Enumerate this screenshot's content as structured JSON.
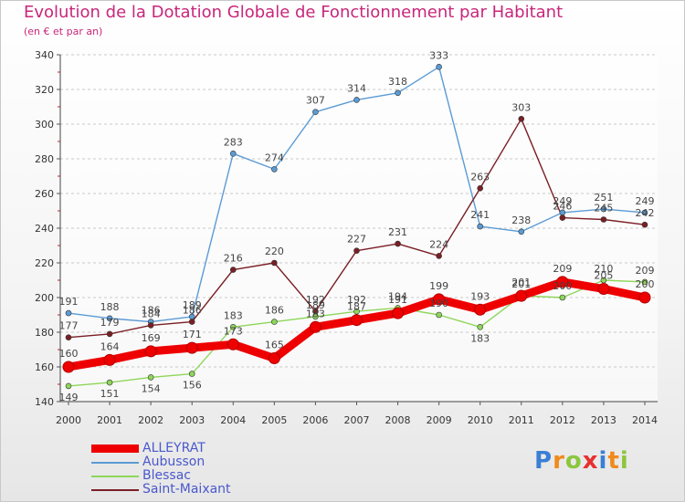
{
  "chart_data": {
    "type": "line",
    "title": "Evolution de la Dotation Globale de Fonctionnement par Habitant",
    "subtitle": "(en € et par an)",
    "xlabel": "",
    "ylabel": "",
    "ylim": [
      140,
      340
    ],
    "yticks": [
      140,
      160,
      180,
      200,
      220,
      240,
      260,
      280,
      300,
      320,
      340
    ],
    "categories": [
      "2000",
      "2001",
      "2002",
      "2003",
      "2004",
      "2005",
      "2006",
      "2007",
      "2008",
      "2009",
      "2010",
      "2011",
      "2012",
      "2013",
      "2014"
    ],
    "grid": "horizontal dashed",
    "legend": "bottom-left",
    "series": [
      {
        "name": "Aubusson",
        "color": "#5b9bd5",
        "values": [
          191,
          188,
          186,
          189,
          283,
          274,
          307,
          314,
          318,
          333,
          241,
          238,
          249,
          251,
          249
        ],
        "labels": [
          "191",
          "188",
          "186",
          "189",
          "283",
          "274",
          "307",
          "314",
          "318",
          "333",
          "241",
          "238",
          "249",
          "251",
          "249"
        ]
      },
      {
        "name": "Saint-Maixant",
        "color": "#7a1f25",
        "values": [
          177,
          179,
          184,
          186,
          216,
          220,
          192,
          227,
          231,
          224,
          263,
          303,
          246,
          245,
          242
        ],
        "labels": [
          "177",
          "179",
          "184",
          "186",
          "216",
          "220",
          "192",
          "227",
          "231",
          "224",
          "263",
          "303",
          "246",
          "245",
          "242"
        ]
      },
      {
        "name": "Blessac",
        "color": "#8ed65a",
        "values": [
          149,
          151,
          154,
          156,
          183,
          186,
          189,
          192,
          194,
          190,
          183,
          201,
          200,
          210,
          209
        ],
        "labels": [
          "149",
          "151",
          "154",
          "156",
          "183",
          "186",
          "189",
          "192",
          "194",
          "190",
          "183",
          "201",
          "200",
          "210",
          "209"
        ]
      },
      {
        "name": "ALLEYRAT",
        "color": "#ee0000",
        "values": [
          160,
          164,
          169,
          171,
          173,
          165,
          183,
          187,
          191,
          199,
          193,
          201,
          209,
          205,
          200
        ],
        "labels": [
          "160",
          "164",
          "169",
          "171",
          "173",
          "165",
          "183",
          "187",
          "191",
          "199",
          "193",
          "201",
          "209",
          "205",
          "200"
        ]
      }
    ]
  },
  "legend": {
    "items": [
      {
        "label": "ALLEYRAT"
      },
      {
        "label": "Aubusson"
      },
      {
        "label": "Blessac"
      },
      {
        "label": "Saint-Maixant"
      }
    ]
  },
  "logo": {
    "letters": [
      "P",
      "r",
      "o",
      "x",
      "i",
      "t",
      "i"
    ],
    "colors": [
      "#3a7fd4",
      "#f08a1c",
      "#8cc63f",
      "#e8312f",
      "#3a7fd4",
      "#f08a1c",
      "#8cc63f"
    ]
  }
}
